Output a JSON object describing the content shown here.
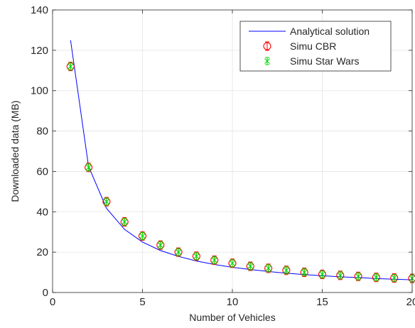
{
  "chart_data": {
    "type": "line",
    "title": "",
    "xlabel": "Number of Vehicles",
    "ylabel": "Downloaded data (MB)",
    "xlim": [
      0,
      20
    ],
    "ylim": [
      0,
      140
    ],
    "xticks": [
      0,
      5,
      10,
      15,
      20
    ],
    "yticks": [
      0,
      20,
      40,
      60,
      80,
      100,
      120,
      140
    ],
    "grid": true,
    "legend_position": "top-right",
    "x": [
      1,
      2,
      3,
      4,
      5,
      6,
      7,
      8,
      9,
      10,
      11,
      12,
      13,
      14,
      15,
      16,
      17,
      18,
      19,
      20
    ],
    "series": [
      {
        "name": "Analytical solution",
        "style": "line",
        "color": "#0000ff",
        "values": [
          125,
          62.5,
          41.7,
          31.3,
          25,
          20.8,
          17.9,
          15.6,
          13.9,
          12.5,
          11.4,
          10.4,
          9.6,
          8.9,
          8.3,
          7.8,
          7.4,
          6.9,
          6.6,
          6.3
        ]
      },
      {
        "name": "Simu CBR",
        "style": "marker-circle",
        "color": "#ff0000",
        "values": [
          112,
          62,
          45,
          35,
          28,
          23.5,
          20,
          18,
          16,
          14.5,
          13,
          12,
          11,
          10,
          9,
          8.5,
          8,
          7.5,
          7.2,
          7
        ]
      },
      {
        "name": "Simu Star Wars",
        "style": "marker-x",
        "color": "#00dd00",
        "values": [
          112,
          62,
          45,
          35,
          28,
          23.5,
          20,
          18,
          16,
          14.5,
          13,
          12,
          11,
          10,
          9,
          8.5,
          8,
          7.5,
          7.2,
          7
        ]
      }
    ]
  }
}
